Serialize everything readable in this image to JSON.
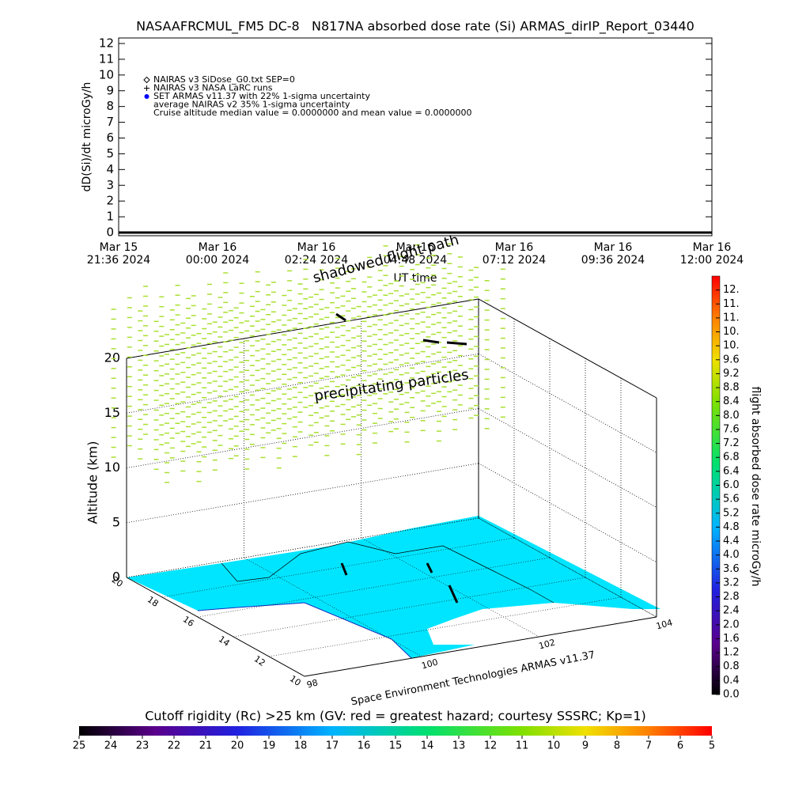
{
  "chart_data": [
    {
      "type": "line",
      "title": "NASAAFRCMUL_FM5 DC-8   N817NA absorbed dose rate (Si) ARMAS_dirIP_Report_03440",
      "y_label": "dD(Si)/dt microGy/h",
      "x_label": "UT time",
      "categories": [
        [
          "Mar 15",
          "21:36 2024"
        ],
        [
          "Mar 16",
          "00:00 2024"
        ],
        [
          "Mar 16",
          "02:24 2024"
        ],
        [
          "Mar 16",
          "04:48 2024"
        ],
        [
          "Mar 16",
          "07:12 2024"
        ],
        [
          "Mar 16",
          "09:36 2024"
        ],
        [
          "Mar 16",
          "12:00 2024"
        ]
      ],
      "series": [
        {
          "color": "#000000",
          "values": [
            0,
            0,
            0,
            0,
            0,
            0,
            0
          ]
        }
      ],
      "ylim": [
        0,
        12
      ],
      "yticks": [
        0,
        1,
        2,
        3,
        4,
        5,
        6,
        7,
        8,
        9,
        10,
        11,
        12
      ],
      "legend": [
        "NAIRAS v3 SiDose_G0.txt SEP=0",
        "NAIRAS v3 NASA LaRC runs",
        "SET ARMAS v11.37 with 22% 1-sigma uncertainty",
        "average NAIRAS v2 35% 1-sigma uncertainty",
        "Cruise altitude median value = 0.0000000 and mean value = 0.0000000"
      ],
      "legend_colors": [
        "#000000",
        "#000000",
        "#0000ff",
        null,
        null
      ]
    },
    {
      "type": "scatter3d",
      "z_label": "Altitude (km)",
      "xlim": [
        98,
        104
      ],
      "xticks": [
        98,
        100,
        102,
        104
      ],
      "ylim": [
        10,
        20
      ],
      "yticks": [
        10,
        12,
        14,
        16,
        18,
        20
      ],
      "zlim": [
        0,
        20
      ],
      "zticks": [
        0,
        5,
        10,
        15,
        20
      ],
      "annotations": [
        "precipitating particles",
        "shadowed flight path",
        "Space Environment Technologies ARMAS v11.37"
      ],
      "points_color": "#a8e030",
      "floor_color": "#00e5ff"
    },
    {
      "type": "colorbar",
      "label": "flight absorbed dose rate microGy/h",
      "clim": [
        0,
        12
      ],
      "ticks": [
        {
          "value": 0,
          "label": "0.0"
        },
        0.4,
        0.8,
        {
          "value": 1.2,
          "label": "1.2"
        },
        1.6,
        {
          "value": 2,
          "label": "2.0"
        },
        2.4,
        2.8,
        3.2,
        3.6,
        {
          "value": 4,
          "label": "4.0"
        },
        4.4,
        4.8,
        5.2,
        5.6,
        {
          "value": 6,
          "label": "6.0"
        },
        6.4,
        6.8,
        7.2,
        7.6,
        {
          "value": 8,
          "label": "8.0"
        },
        8.4,
        8.8,
        9.2,
        9.6,
        {
          "value": 10,
          "label": "10."
        },
        {
          "value": 10.4,
          "label": "10."
        },
        {
          "value": 10.8,
          "label": "11."
        },
        {
          "value": 11.2,
          "label": "11."
        },
        {
          "value": 11.6,
          "label": "12."
        }
      ]
    },
    {
      "type": "colorbar",
      "label": "Cutoff rigidity (Rc) >25 km (GV: red = greatest hazard; courtesy SSSRC; Kp=1)",
      "clim": [
        25,
        5
      ],
      "ticks": [
        25,
        24,
        23,
        22,
        21,
        20,
        19,
        18,
        17,
        16,
        15,
        14,
        13,
        12,
        11,
        10,
        9,
        8,
        7,
        6,
        5
      ]
    }
  ]
}
